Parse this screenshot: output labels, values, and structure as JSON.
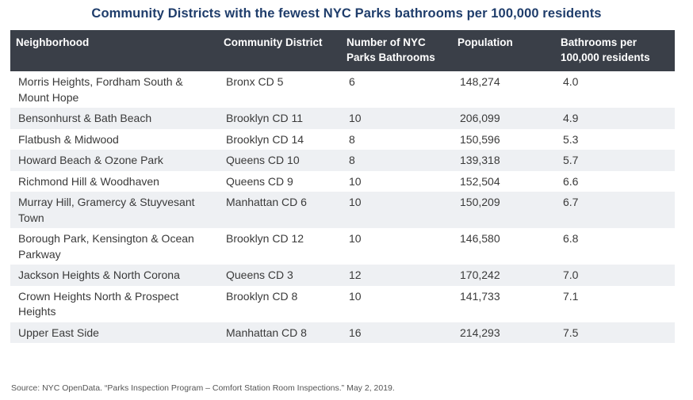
{
  "title": "Community Districts with the fewest NYC Parks bathrooms per 100,000 residents",
  "table": {
    "headers": [
      "Neighborhood",
      "Community District",
      "Number of NYC Parks Bathrooms",
      "Population",
      "Bathrooms per 100,000 residents"
    ],
    "rows": [
      [
        "Morris Heights, Fordham South & Mount Hope",
        "Bronx CD 5",
        "6",
        "148,274",
        "4.0"
      ],
      [
        "Bensonhurst & Bath Beach",
        "Brooklyn CD 11",
        "10",
        "206,099",
        "4.9"
      ],
      [
        "Flatbush & Midwood",
        "Brooklyn CD 14",
        "8",
        "150,596",
        "5.3"
      ],
      [
        "Howard Beach & Ozone Park",
        "Queens CD 10",
        "8",
        "139,318",
        "5.7"
      ],
      [
        "Richmond Hill & Woodhaven",
        "Queens CD 9",
        "10",
        "152,504",
        "6.6"
      ],
      [
        "Murray Hill, Gramercy & Stuyvesant Town",
        "Manhattan CD 6",
        "10",
        "150,209",
        "6.7"
      ],
      [
        "Borough Park, Kensington & Ocean Parkway",
        "Brooklyn CD 12",
        "10",
        "146,580",
        "6.8"
      ],
      [
        "Jackson Heights & North Corona",
        "Queens CD 3",
        "12",
        "170,242",
        "7.0"
      ],
      [
        "Crown Heights North & Prospect Heights",
        "Brooklyn CD 8",
        "10",
        "141,733",
        "7.1"
      ],
      [
        "Upper East Side",
        "Manhattan CD 8",
        "16",
        "214,293",
        "7.5"
      ]
    ]
  },
  "source": "Source: NYC OpenData. “Parks Inspection Program – Comfort Station Room Inspections.” May 2, 2019.",
  "colors": {
    "title": "#1f3d6b",
    "header_bg": "#3a3f48",
    "stripe": "#eef0f3"
  }
}
